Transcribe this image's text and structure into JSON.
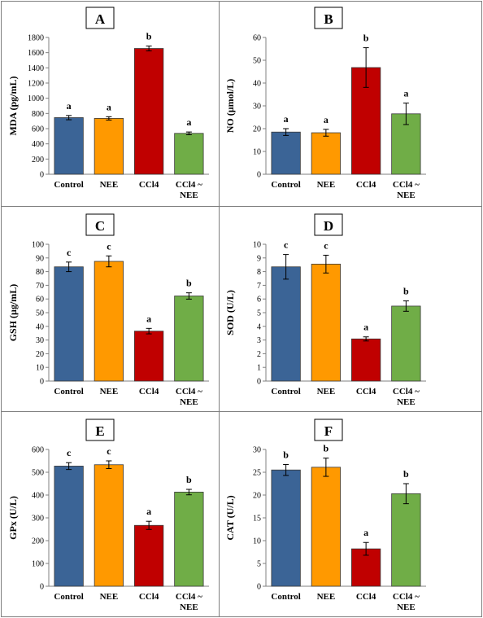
{
  "colors": {
    "series": [
      "#3B6496",
      "#FF9900",
      "#C00000",
      "#70AD47"
    ],
    "border": "#7f7f7f",
    "axis": "#595959"
  },
  "chart_data": [
    {
      "type": "bar",
      "panel_label": "A",
      "ylabel": "MDA (pg/mL)",
      "ylim": [
        0,
        1800
      ],
      "yticks": [
        0,
        200,
        400,
        600,
        800,
        1000,
        1200,
        1400,
        1600,
        1800
      ],
      "categories": [
        "Control",
        "NEE",
        "CCl4",
        "CCl4 ~ NEE"
      ],
      "values": [
        745,
        735,
        1655,
        538
      ],
      "errors": [
        28,
        22,
        32,
        18
      ],
      "letters": [
        "a",
        "a",
        "b",
        "a"
      ]
    },
    {
      "type": "bar",
      "panel_label": "B",
      "ylabel": "NO (µmol/L)",
      "ylim": [
        0,
        60
      ],
      "yticks": [
        0,
        10,
        20,
        30,
        40,
        50,
        60
      ],
      "categories": [
        "Control",
        "NEE",
        "CCl4",
        "CCl4 ~ NEE"
      ],
      "values": [
        18.5,
        18.2,
        46.8,
        26.5
      ],
      "errors": [
        1.5,
        1.5,
        8.7,
        4.7
      ],
      "letters": [
        "a",
        "a",
        "b",
        "a"
      ]
    },
    {
      "type": "bar",
      "panel_label": "C",
      "ylabel": "GSH (µg/mL)",
      "ylim": [
        0,
        100
      ],
      "yticks": [
        0,
        10,
        20,
        30,
        40,
        50,
        60,
        70,
        80,
        90,
        100
      ],
      "categories": [
        "Control",
        "NEE",
        "CCl4",
        "CCl4 ~ NEE"
      ],
      "values": [
        83.5,
        87.5,
        36.5,
        62.2
      ],
      "errors": [
        3.5,
        4.0,
        2.0,
        2.3
      ],
      "letters": [
        "c",
        "c",
        "a",
        "b"
      ]
    },
    {
      "type": "bar",
      "panel_label": "D",
      "ylabel": "SOD (U/L)",
      "ylim": [
        0,
        10
      ],
      "yticks": [
        0,
        1,
        2,
        3,
        4,
        5,
        6,
        7,
        8,
        9,
        10
      ],
      "categories": [
        "Control",
        "NEE",
        "CCl4",
        "CCl4 ~ NEE"
      ],
      "values": [
        8.35,
        8.55,
        3.08,
        5.48
      ],
      "errors": [
        0.9,
        0.65,
        0.15,
        0.38
      ],
      "letters": [
        "c",
        "c",
        "a",
        "b"
      ]
    },
    {
      "type": "bar",
      "panel_label": "E",
      "ylabel": "GPx (U/L)",
      "ylim": [
        0,
        600
      ],
      "yticks": [
        0,
        100,
        200,
        300,
        400,
        500,
        600
      ],
      "categories": [
        "Control",
        "NEE",
        "CCl4",
        "CCl4 ~ NEE"
      ],
      "values": [
        527,
        533,
        267,
        413
      ],
      "errors": [
        15,
        17,
        18,
        12
      ],
      "letters": [
        "c",
        "c",
        "a",
        "b"
      ]
    },
    {
      "type": "bar",
      "panel_label": "F",
      "ylabel": "CAT (U/L)",
      "ylim": [
        0,
        30
      ],
      "yticks": [
        0,
        5,
        10,
        15,
        20,
        25,
        30
      ],
      "categories": [
        "Control",
        "NEE",
        "CCl4",
        "CCl4 ~ NEE"
      ],
      "values": [
        25.5,
        26.1,
        8.2,
        20.3
      ],
      "errors": [
        1.2,
        2.0,
        1.4,
        2.2
      ],
      "letters": [
        "b",
        "b",
        "a",
        "b"
      ]
    }
  ]
}
